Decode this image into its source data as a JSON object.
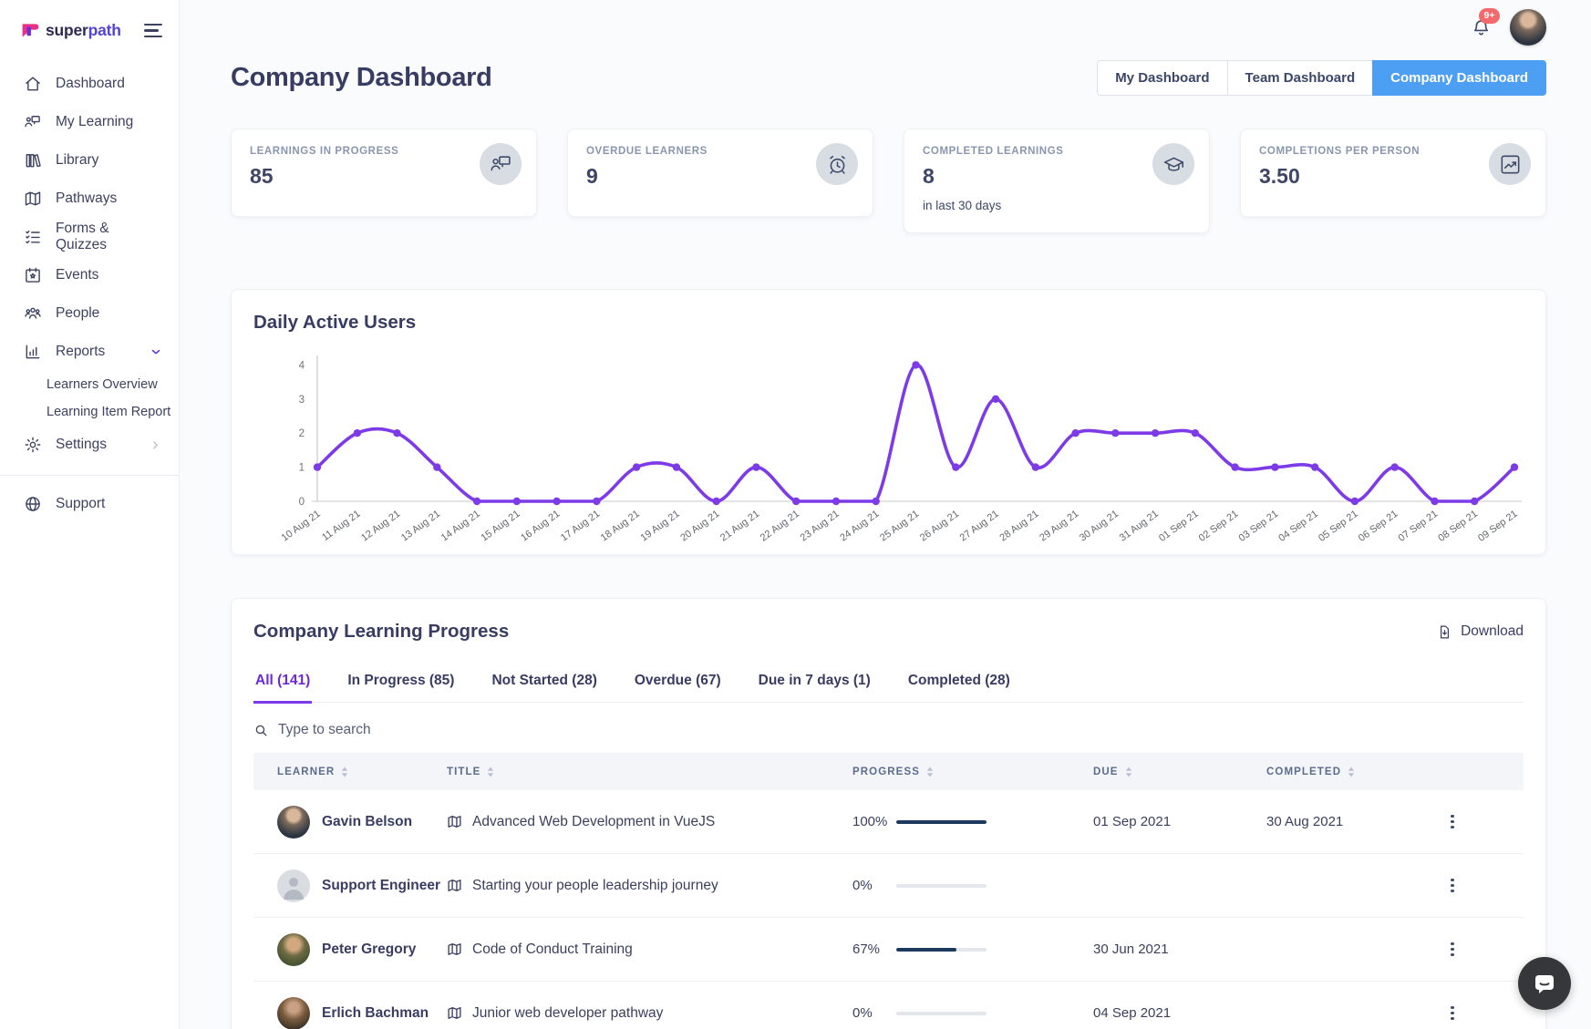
{
  "sidebar": {
    "logo_super": "super",
    "logo_path": "path",
    "items": [
      {
        "label": "Dashboard",
        "icon": "home-icon"
      },
      {
        "label": "My Learning",
        "icon": "my-learning-icon"
      },
      {
        "label": "Library",
        "icon": "library-icon"
      },
      {
        "label": "Pathways",
        "icon": "pathways-icon"
      },
      {
        "label": "Forms & Quizzes",
        "icon": "forms-quizzes-icon"
      },
      {
        "label": "Events",
        "icon": "events-icon"
      },
      {
        "label": "People",
        "icon": "people-icon"
      },
      {
        "label": "Reports",
        "icon": "reports-icon",
        "expanded": true,
        "children": [
          "Learners Overview",
          "Learning Item Report"
        ]
      },
      {
        "label": "Settings",
        "icon": "settings-icon",
        "chevron_right": true
      }
    ],
    "footer_item": {
      "label": "Support",
      "icon": "support-icon"
    }
  },
  "topbar": {
    "notification_badge": "9+"
  },
  "page": {
    "title": "Company Dashboard",
    "dashboard_tabs": [
      {
        "label": "My Dashboard",
        "active": false
      },
      {
        "label": "Team Dashboard",
        "active": false
      },
      {
        "label": "Company Dashboard",
        "active": true
      }
    ]
  },
  "stats": [
    {
      "label": "LEARNINGS IN PROGRESS",
      "value": "85",
      "note": "",
      "icon": "presentation-icon"
    },
    {
      "label": "OVERDUE LEARNERS",
      "value": "9",
      "note": "",
      "icon": "alarm-icon"
    },
    {
      "label": "COMPLETED LEARNINGS",
      "value": "8",
      "note": "in last 30 days",
      "icon": "graduation-icon"
    },
    {
      "label": "COMPLETIONS PER PERSON",
      "value": "3.50",
      "note": "",
      "icon": "trend-icon"
    }
  ],
  "chart_data": {
    "type": "line",
    "title": "Daily Active Users",
    "x": [
      "10 Aug 21",
      "11 Aug 21",
      "12 Aug 21",
      "13 Aug 21",
      "14 Aug 21",
      "15 Aug 21",
      "16 Aug 21",
      "17 Aug 21",
      "18 Aug 21",
      "19 Aug 21",
      "20 Aug 21",
      "21 Aug 21",
      "22 Aug 21",
      "23 Aug 21",
      "24 Aug 21",
      "25 Aug 21",
      "26 Aug 21",
      "27 Aug 21",
      "28 Aug 21",
      "29 Aug 21",
      "30 Aug 21",
      "31 Aug 21",
      "01 Sep 21",
      "02 Sep 21",
      "03 Sep 21",
      "04 Sep 21",
      "05 Sep 21",
      "06 Sep 21",
      "07 Sep 21",
      "08 Sep 21",
      "09 Sep 21"
    ],
    "values": [
      1,
      2,
      2,
      1,
      0,
      0,
      0,
      0,
      1,
      1,
      0,
      1,
      0,
      0,
      0,
      4,
      1,
      3,
      1,
      2,
      2,
      2,
      2,
      1,
      1,
      1,
      0,
      1,
      0,
      0,
      1
    ],
    "ylim": [
      0,
      4
    ],
    "yticks": [
      0,
      1,
      2,
      3,
      4
    ],
    "line_color": "#7d3be8",
    "grid": false,
    "legend": "none"
  },
  "learning_table": {
    "title": "Company Learning Progress",
    "download_label": "Download",
    "filter_tabs": [
      {
        "label": "All (141)",
        "active": true
      },
      {
        "label": "In Progress (85)",
        "active": false
      },
      {
        "label": "Not Started (28)",
        "active": false
      },
      {
        "label": "Overdue (67)",
        "active": false
      },
      {
        "label": "Due in 7 days (1)",
        "active": false
      },
      {
        "label": "Completed (28)",
        "active": false
      }
    ],
    "search_placeholder": "Type to search",
    "columns": [
      "Learner",
      "Title",
      "Progress",
      "Due",
      "Completed"
    ],
    "rows": [
      {
        "learner": "Gavin Belson",
        "avatar": "gavin-belson-photo",
        "title": "Advanced Web Development in VueJS",
        "progress_label": "100%",
        "progress_pct": 100,
        "due": "01 Sep 2021",
        "completed": "30 Aug 2021"
      },
      {
        "learner": "Support Engineer",
        "avatar": "generic-person-placeholder",
        "title": "Starting your people leadership journey",
        "progress_label": "0%",
        "progress_pct": 0,
        "due": "",
        "completed": ""
      },
      {
        "learner": "Peter Gregory",
        "avatar": "peter-gregory-photo",
        "title": "Code of Conduct Training",
        "progress_label": "67%",
        "progress_pct": 67,
        "due": "30 Jun 2021",
        "completed": ""
      },
      {
        "learner": "Erlich Bachman",
        "avatar": "erlich-bachman-photo",
        "title": "Junior web developer pathway",
        "progress_label": "0%",
        "progress_pct": 0,
        "due": "04 Sep 2021",
        "completed": ""
      }
    ]
  },
  "colors": {
    "accent_purple": "#7d3be8",
    "tab_active_purple": "#6d28d9",
    "active_button_blue": "#4d9ff3",
    "progress_bar_navy": "#1c3a5e",
    "badge_red": "#f4696c",
    "logo_pink": "#ea2f86",
    "logo_purple": "#6a2fd6"
  }
}
